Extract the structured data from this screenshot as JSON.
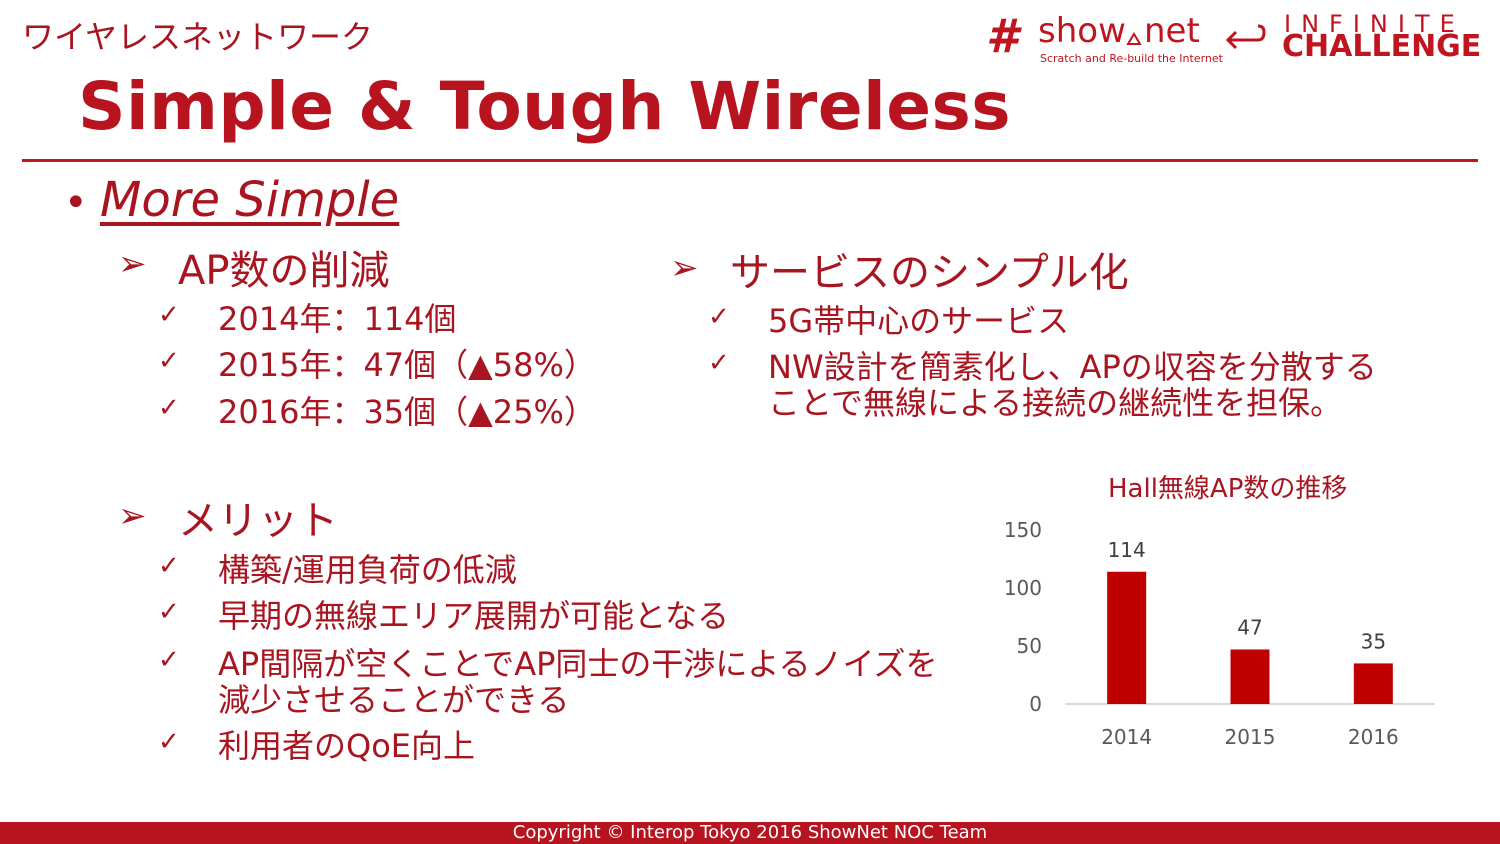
{
  "header": {
    "section_label": "ワイヤレスネットワーク",
    "title": "Simple & Tough Wireless"
  },
  "logo": {
    "hash": "#",
    "brand_left": "show",
    "brand_right": "net",
    "tagline": "Scratch and Re-build the Internet",
    "infinite": "INFINITE",
    "challenge": "CHALLENGE"
  },
  "bullet": {
    "dot": "•",
    "heading": "More Simple"
  },
  "glyphs": {
    "arrow": "➢",
    "check": "✓"
  },
  "ap_reduction": {
    "heading": "AP数の削減",
    "items": [
      "2014年：114個",
      "2015年：47個（▲58%）",
      "2016年：35個（▲25%）"
    ]
  },
  "service_simplify": {
    "heading": "サービスのシンプル化",
    "items": [
      "5G帯中心のサービス",
      "NW設計を簡素化し、APの収容を分散する",
      "ことで無線による接続の継続性を担保。"
    ]
  },
  "merit": {
    "heading": "メリット",
    "items": [
      "構築/運用負荷の低減",
      "早期の無線エリア展開が可能となる",
      "AP間隔が空くことでAP同士の干渉によるノイズを",
      "減少させることができる",
      "利用者のQoE向上"
    ]
  },
  "chart_data": {
    "type": "bar",
    "title": "Hall無線AP数の推移",
    "categories": [
      "2014",
      "2015",
      "2016"
    ],
    "values": [
      114,
      47,
      35
    ],
    "ylim": [
      0,
      150
    ],
    "yticks": [
      "0",
      "50",
      "100",
      "150"
    ],
    "grid": false,
    "bar_color": "#c00000"
  },
  "footer": {
    "text": "Copyright © Interop Tokyo 2016 ShowNet NOC Team"
  }
}
